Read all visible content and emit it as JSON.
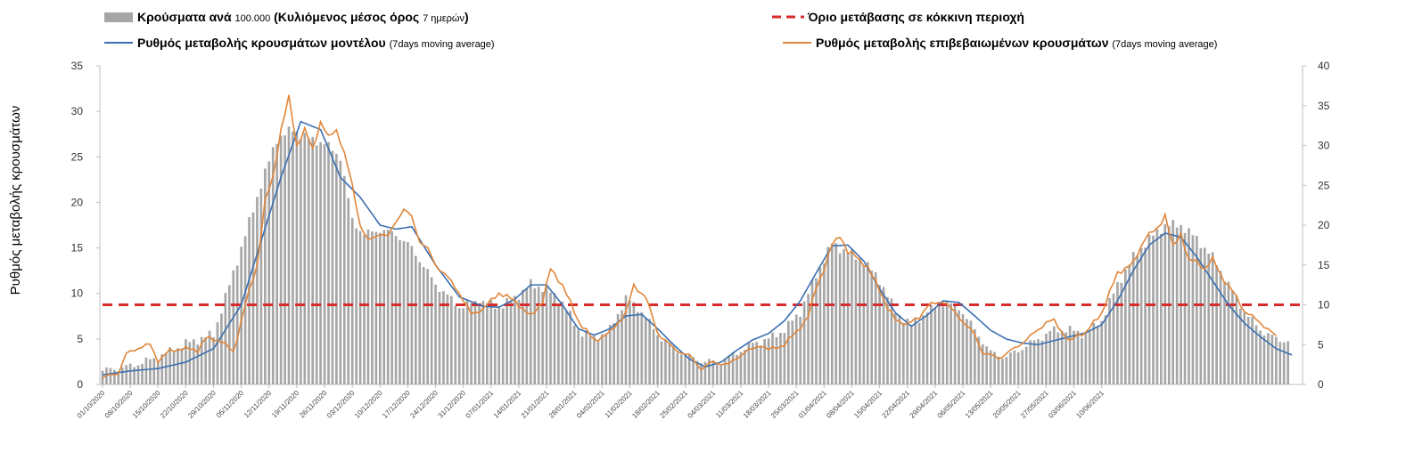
{
  "chart_data": {
    "type": "bar",
    "title": "",
    "xlabel": "",
    "ylabel": "Ρυθμός μεταβολής κρουσμάτων",
    "ylim": [
      0,
      35
    ],
    "y2lim": [
      0,
      40
    ],
    "yticks": [
      0,
      5,
      10,
      15,
      20,
      25,
      30,
      35
    ],
    "y2ticks": [
      0,
      5,
      10,
      15,
      20,
      25,
      30,
      35,
      40
    ],
    "grid": false,
    "legend_position": "top",
    "threshold": 8.75,
    "x_tick_labels": [
      "01/10/2020",
      "08/10/2020",
      "15/10/2020",
      "22/10/2020",
      "29/10/2020",
      "05/11/2020",
      "12/11/2020",
      "19/11/2020",
      "26/11/2020",
      "03/12/2020",
      "10/12/2020",
      "17/12/2020",
      "24/12/2020",
      "31/12/2020",
      "07/01/2021",
      "14/01/2021",
      "21/01/2021",
      "28/01/2021",
      "04/02/2021",
      "11/02/2021",
      "18/02/2021",
      "25/02/2021",
      "04/03/2021",
      "11/03/2021",
      "18/03/2021",
      "25/03/2021",
      "01/04/2021",
      "08/04/2021",
      "15/04/2021",
      "22/04/2021",
      "29/04/2021",
      "06/05/2021",
      "13/05/2021",
      "20/05/2021",
      "27/05/2021",
      "03/06/2021",
      "10/06/2021"
    ],
    "legend": {
      "bars": {
        "label": "Κρούσματα ανά",
        "note": "100.000",
        "label2": "(Κυλιόμενος μέσος όρος",
        "note2": "7 ημερών",
        "label3": ")"
      },
      "threshold": {
        "label": "Όριο μετάβασης σε κόκκινη περιοχή"
      },
      "model": {
        "label": "Ρυθμός μεταβολής κρουσμάτων μοντέλου",
        "note": "(7days moving average)"
      },
      "confirmed": {
        "label": "Ρυθμός μεταβολής επιβεβαιωμένων κρουσμάτων",
        "note": "(7days moving average)"
      }
    },
    "colors": {
      "bars": "#a6a6a6",
      "threshold": "#d92b2b",
      "model": "#3a6fb0",
      "confirmed": "#e0863a",
      "axis": "#bfbfbf"
    },
    "series": [
      {
        "name": "Κρούσματα ανά 100.000 (Κυλιόμενος μέσος όρος 7 ημερών)",
        "axis": "left",
        "kind": "bar",
        "keys": [
          [
            0,
            1.5
          ],
          [
            7,
            2.0
          ],
          [
            14,
            3.0
          ],
          [
            21,
            4.5
          ],
          [
            28,
            5.5
          ],
          [
            35,
            15
          ],
          [
            40,
            22
          ],
          [
            44,
            27
          ],
          [
            48,
            28
          ],
          [
            52,
            27
          ],
          [
            56,
            26.5
          ],
          [
            60,
            25
          ],
          [
            63,
            18
          ],
          [
            66,
            16.5
          ],
          [
            70,
            17
          ],
          [
            74,
            16.5
          ],
          [
            78,
            15
          ],
          [
            84,
            11
          ],
          [
            90,
            8.5
          ],
          [
            95,
            9.2
          ],
          [
            100,
            8.5
          ],
          [
            104,
            9.5
          ],
          [
            108,
            11
          ],
          [
            112,
            10.5
          ],
          [
            116,
            9
          ],
          [
            120,
            6
          ],
          [
            124,
            5
          ],
          [
            128,
            6
          ],
          [
            132,
            9.5
          ],
          [
            136,
            8
          ],
          [
            140,
            5.5
          ],
          [
            144,
            4
          ],
          [
            148,
            3
          ],
          [
            152,
            2.5
          ],
          [
            156,
            2.5
          ],
          [
            160,
            3.5
          ],
          [
            164,
            4.5
          ],
          [
            168,
            5
          ],
          [
            172,
            6
          ],
          [
            176,
            8
          ],
          [
            180,
            12
          ],
          [
            184,
            15.5
          ],
          [
            188,
            14.5
          ],
          [
            192,
            13.5
          ],
          [
            196,
            11.5
          ],
          [
            200,
            8
          ],
          [
            204,
            6.5
          ],
          [
            208,
            8
          ],
          [
            212,
            9
          ],
          [
            216,
            8.5
          ],
          [
            220,
            6
          ],
          [
            224,
            3.5
          ],
          [
            228,
            3
          ],
          [
            232,
            4
          ],
          [
            236,
            5
          ],
          [
            240,
            6
          ],
          [
            244,
            6
          ],
          [
            248,
            5.5
          ],
          [
            252,
            7
          ],
          [
            256,
            11
          ],
          [
            260,
            14
          ],
          [
            264,
            16
          ],
          [
            268,
            17.5
          ],
          [
            272,
            17.5
          ],
          [
            276,
            16
          ],
          [
            280,
            14
          ],
          [
            284,
            11
          ],
          [
            288,
            8
          ],
          [
            292,
            6
          ],
          [
            296,
            5
          ],
          [
            300,
            4.7
          ]
        ]
      },
      {
        "name": "Ρυθμός μεταβολής κρουσμάτων μοντέλου (7days moving average)",
        "axis": "right",
        "kind": "line",
        "keys": [
          [
            0,
            1.2
          ],
          [
            7,
            1.7
          ],
          [
            14,
            2.0
          ],
          [
            21,
            2.8
          ],
          [
            28,
            4.5
          ],
          [
            35,
            10
          ],
          [
            40,
            18
          ],
          [
            45,
            26
          ],
          [
            50,
            33
          ],
          [
            55,
            32
          ],
          [
            60,
            26
          ],
          [
            65,
            23.5
          ],
          [
            70,
            20
          ],
          [
            74,
            19.5
          ],
          [
            78,
            19.8
          ],
          [
            84,
            15
          ],
          [
            90,
            11
          ],
          [
            96,
            9.8
          ],
          [
            100,
            9.7
          ],
          [
            104,
            10.7
          ],
          [
            108,
            12.5
          ],
          [
            112,
            12.5
          ],
          [
            116,
            10
          ],
          [
            120,
            7
          ],
          [
            124,
            6.2
          ],
          [
            128,
            7
          ],
          [
            132,
            8.6
          ],
          [
            136,
            8.8
          ],
          [
            140,
            7
          ],
          [
            144,
            5
          ],
          [
            148,
            3.2
          ],
          [
            152,
            2.2
          ],
          [
            156,
            2.8
          ],
          [
            160,
            4.3
          ],
          [
            164,
            5.6
          ],
          [
            168,
            6.4
          ],
          [
            172,
            8
          ],
          [
            176,
            10.5
          ],
          [
            180,
            14
          ],
          [
            184,
            17.4
          ],
          [
            188,
            17.5
          ],
          [
            192,
            15.5
          ],
          [
            196,
            12
          ],
          [
            200,
            9
          ],
          [
            204,
            7.3
          ],
          [
            208,
            8.7
          ],
          [
            212,
            10.5
          ],
          [
            216,
            10.3
          ],
          [
            220,
            8.6
          ],
          [
            224,
            6.8
          ],
          [
            228,
            5.7
          ],
          [
            232,
            5.2
          ],
          [
            236,
            5.0
          ],
          [
            240,
            5.5
          ],
          [
            244,
            6
          ],
          [
            248,
            6.5
          ],
          [
            252,
            7.5
          ],
          [
            256,
            10.5
          ],
          [
            260,
            14.3
          ],
          [
            264,
            17.5
          ],
          [
            268,
            19
          ],
          [
            272,
            18.5
          ],
          [
            276,
            16
          ],
          [
            280,
            13
          ],
          [
            284,
            10
          ],
          [
            288,
            7.7
          ],
          [
            292,
            6
          ],
          [
            296,
            4.5
          ],
          [
            300,
            3.7
          ]
        ]
      },
      {
        "name": "Ρυθμός μεταβολής επιβεβαιωμένων κρουσμάτων (7days moving average)",
        "axis": "right",
        "kind": "line",
        "keys": [
          [
            0,
            0.8
          ],
          [
            4,
            1.5
          ],
          [
            6,
            3.8
          ],
          [
            9,
            4.6
          ],
          [
            12,
            5
          ],
          [
            14,
            3.0
          ],
          [
            17,
            4.2
          ],
          [
            20,
            4.5
          ],
          [
            24,
            4.3
          ],
          [
            26,
            5.8
          ],
          [
            30,
            5.5
          ],
          [
            33,
            4
          ],
          [
            36,
            10
          ],
          [
            39,
            15
          ],
          [
            41,
            23
          ],
          [
            43,
            26
          ],
          [
            45,
            32
          ],
          [
            47,
            36
          ],
          [
            49,
            30
          ],
          [
            51,
            32
          ],
          [
            53,
            29.5
          ],
          [
            55,
            33
          ],
          [
            57,
            31
          ],
          [
            59,
            32
          ],
          [
            61,
            29
          ],
          [
            63,
            25
          ],
          [
            65,
            20
          ],
          [
            67,
            18
          ],
          [
            70,
            19
          ],
          [
            72,
            18.5
          ],
          [
            74,
            20.5
          ],
          [
            76,
            22
          ],
          [
            78,
            21
          ],
          [
            80,
            18
          ],
          [
            82,
            17
          ],
          [
            84,
            15
          ],
          [
            87,
            13.5
          ],
          [
            90,
            11.5
          ],
          [
            93,
            8.8
          ],
          [
            96,
            9.5
          ],
          [
            100,
            11.5
          ],
          [
            104,
            10.5
          ],
          [
            108,
            8.5
          ],
          [
            111,
            10.5
          ],
          [
            113,
            14.5
          ],
          [
            116,
            12.5
          ],
          [
            120,
            8
          ],
          [
            124,
            5.5
          ],
          [
            128,
            6.5
          ],
          [
            132,
            9
          ],
          [
            134,
            12.4
          ],
          [
            137,
            11
          ],
          [
            140,
            6.5
          ],
          [
            144,
            4.5
          ],
          [
            148,
            3.6
          ],
          [
            151,
            2
          ],
          [
            154,
            2.8
          ],
          [
            158,
            2.5
          ],
          [
            162,
            4.1
          ],
          [
            164,
            4.4
          ],
          [
            166,
            5
          ],
          [
            168,
            4.3
          ],
          [
            172,
            5
          ],
          [
            175,
            6.6
          ],
          [
            178,
            8.5
          ],
          [
            180,
            12.2
          ],
          [
            182,
            14.5
          ],
          [
            184,
            17.5
          ],
          [
            186,
            18.8
          ],
          [
            188,
            16.5
          ],
          [
            190,
            16.2
          ],
          [
            193,
            14.6
          ],
          [
            196,
            12
          ],
          [
            198,
            9.5
          ],
          [
            200,
            8.2
          ],
          [
            203,
            7.5
          ],
          [
            206,
            8.5
          ],
          [
            208,
            9.8
          ],
          [
            210,
            10.2
          ],
          [
            212,
            10.5
          ],
          [
            216,
            8.5
          ],
          [
            220,
            6.2
          ],
          [
            222,
            4
          ],
          [
            226,
            3.3
          ],
          [
            230,
            4.5
          ],
          [
            234,
            6
          ],
          [
            238,
            7.8
          ],
          [
            240,
            8
          ],
          [
            244,
            5.3
          ],
          [
            246,
            6.3
          ],
          [
            248,
            6.5
          ],
          [
            252,
            9
          ],
          [
            256,
            14
          ],
          [
            260,
            15.2
          ],
          [
            263,
            18.5
          ],
          [
            266,
            19.5
          ],
          [
            268,
            21.3
          ],
          [
            270,
            17.2
          ],
          [
            272,
            19
          ],
          [
            274,
            15.5
          ],
          [
            276,
            15.5
          ],
          [
            278,
            14.5
          ],
          [
            280,
            15.7
          ],
          [
            283,
            13
          ],
          [
            286,
            11
          ],
          [
            288,
            9.2
          ],
          [
            292,
            7.8
          ],
          [
            296,
            6
          ]
        ]
      }
    ]
  }
}
